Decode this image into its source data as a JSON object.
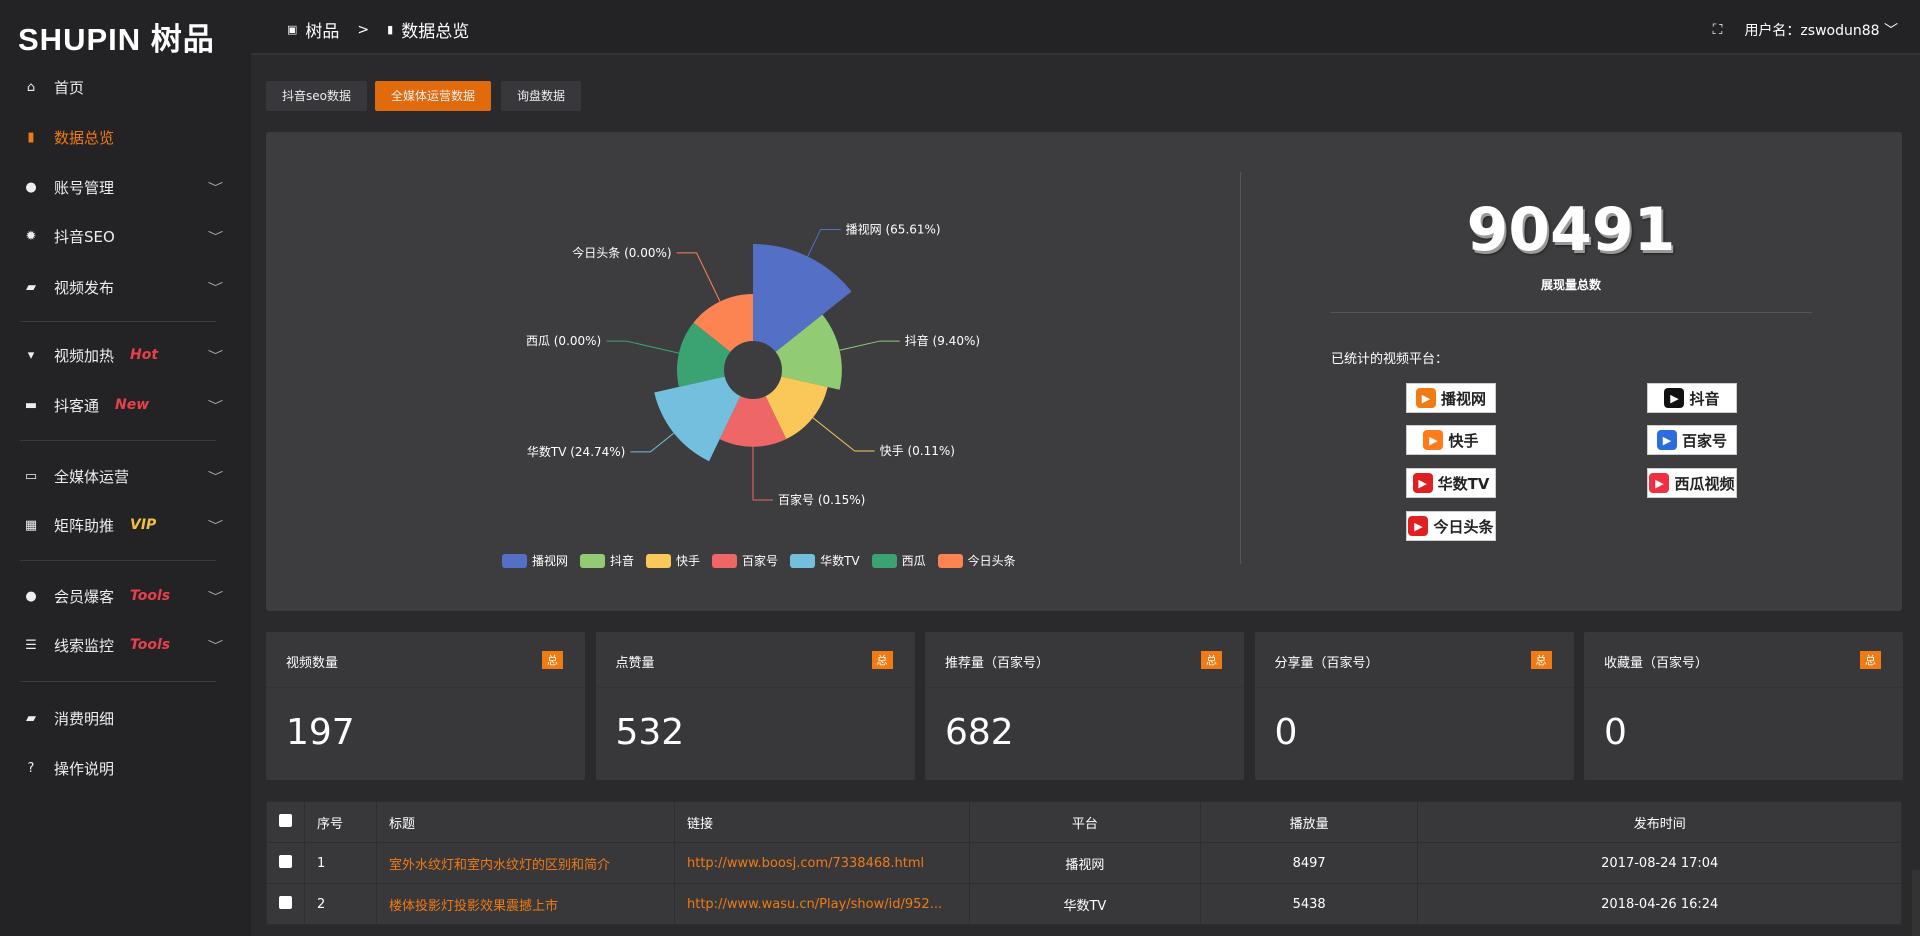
{
  "brand": {
    "logo": "SHUPIN 树品"
  },
  "header": {
    "crumbs": [
      "树品",
      ">",
      "数据总览"
    ],
    "user_label": "用户名：zswodun88",
    "fullscreen_icon": "fullscreen-icon"
  },
  "sidebar": {
    "items": [
      {
        "label": "首页",
        "icon": "⌂"
      },
      {
        "label": "数据总览",
        "icon": "▮",
        "active": true
      },
      {
        "label": "账号管理",
        "icon": "●",
        "chev": "﹀"
      },
      {
        "label": "抖音SEO",
        "icon": "✹",
        "chev": "﹀"
      },
      {
        "label": "视频发布",
        "icon": "▰",
        "chev": "﹀"
      },
      {
        "label": "视频加热",
        "icon": "▾",
        "badge": "Hot",
        "chev": "﹀"
      },
      {
        "label": "抖客通",
        "icon": "▬",
        "badge": "New",
        "chev": "﹀"
      },
      {
        "label": "全媒体运营",
        "icon": "▭",
        "chev": "﹀"
      },
      {
        "label": "矩阵助推",
        "icon": "▦",
        "badge": "VIP",
        "chev": "﹀"
      },
      {
        "label": "会员爆客",
        "icon": "●",
        "badge": "Tools",
        "chev": "﹀"
      },
      {
        "label": "线索监控",
        "icon": "☰",
        "badge": "Tools",
        "chev": "﹀"
      },
      {
        "label": "消费明细",
        "icon": "▰"
      },
      {
        "label": "操作说明",
        "icon": "?"
      }
    ]
  },
  "tabs": [
    "抖音seo数据",
    "全媒体运营数据",
    "询盘数据"
  ],
  "chart_data": {
    "type": "pie",
    "rose": true,
    "categories": [
      "播视网",
      "抖音",
      "快手",
      "百家号",
      "华数TV",
      "西瓜",
      "今日头条"
    ],
    "values": [
      65.61,
      9.4,
      0.11,
      0.15,
      24.74,
      0.0,
      0.0
    ],
    "labels": [
      "播视网 (65.61%)",
      "抖音 (9.40%)",
      "快手 (0.11%)",
      "百家号 (0.15%)",
      "华数TV (24.74%)",
      "西瓜 (0.00%)",
      "今日头条 (0.00%)"
    ],
    "colors": [
      "#5470c6",
      "#91cc75",
      "#fac858",
      "#ee6666",
      "#73c0de",
      "#3ba272",
      "#fc8452"
    ],
    "legend_position": "bottom"
  },
  "summary": {
    "total": "90491",
    "total_label": "展现量总数",
    "platforms_label": "已统计的视频平台：",
    "platforms": [
      {
        "name": "播视网",
        "color": "#f07a14"
      },
      {
        "name": "抖音",
        "color": "#111"
      },
      {
        "name": "快手",
        "color": "#ff7a1a"
      },
      {
        "name": "百家号",
        "color": "#2b6de0"
      },
      {
        "name": "华数TV",
        "color": "#e02020"
      },
      {
        "name": "西瓜视频",
        "color": "#f03040"
      },
      {
        "name": "今日头条",
        "color": "#e02020"
      }
    ]
  },
  "stats": [
    {
      "title": "视频数量",
      "badge": "总",
      "value": "197"
    },
    {
      "title": "点赞量",
      "badge": "总",
      "value": "532"
    },
    {
      "title": "推荐量（百家号）",
      "badge": "总",
      "value": "682"
    },
    {
      "title": "分享量（百家号）",
      "badge": "总",
      "value": "0"
    },
    {
      "title": "收藏量（百家号）",
      "badge": "总",
      "value": "0"
    }
  ],
  "table": {
    "headers": [
      "序号",
      "标题",
      "链接",
      "平台",
      "播放量",
      "发布时间"
    ],
    "rows": [
      [
        "1",
        "室外水纹灯和室内水纹灯的区别和简介",
        "http://www.boosj.com/7338468.html",
        "播视网",
        "8497",
        "2017-08-24 17:04"
      ],
      [
        "2",
        "楼体投影灯投影效果震撼上市",
        "http://www.wasu.cn/Play/show/id/952...",
        "华数TV",
        "5438",
        "2018-04-26 16:24"
      ]
    ]
  }
}
